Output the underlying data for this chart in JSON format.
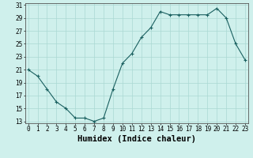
{
  "xlabel": "Humidex (Indice chaleur)",
  "ylabel": "",
  "x_values": [
    0,
    1,
    2,
    3,
    4,
    5,
    6,
    7,
    8,
    9,
    10,
    11,
    12,
    13,
    14,
    15,
    16,
    17,
    18,
    19,
    20,
    21,
    22,
    23
  ],
  "y_values": [
    21,
    20,
    18,
    16,
    15,
    13.5,
    13.5,
    13,
    13.5,
    18,
    22,
    23.5,
    26,
    27.5,
    30,
    29.5,
    29.5,
    29.5,
    29.5,
    29.5,
    30.5,
    29,
    25,
    22.5
  ],
  "ylim_min": 13,
  "ylim_max": 31,
  "xlim_min": 0,
  "xlim_max": 23,
  "yticks": [
    13,
    15,
    17,
    19,
    21,
    23,
    25,
    27,
    29,
    31
  ],
  "xticks": [
    0,
    1,
    2,
    3,
    4,
    5,
    6,
    7,
    8,
    9,
    10,
    11,
    12,
    13,
    14,
    15,
    16,
    17,
    18,
    19,
    20,
    21,
    22,
    23
  ],
  "line_color": "#1a6060",
  "marker_color": "#1a6060",
  "bg_color": "#cff0ec",
  "grid_color": "#aad8d3",
  "tick_fontsize": 5.5,
  "xlabel_fontsize": 7.5
}
